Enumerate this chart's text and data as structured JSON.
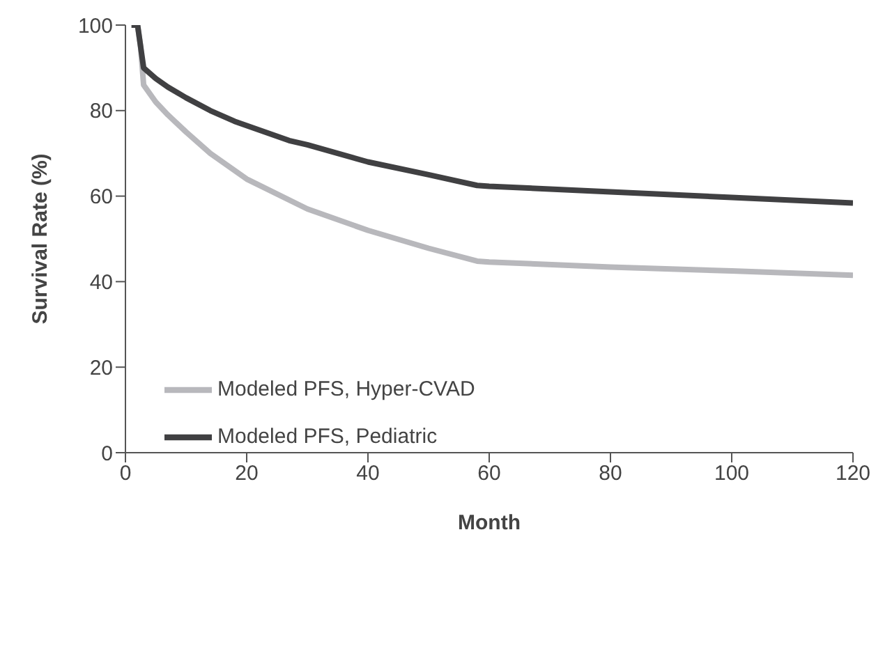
{
  "chart_data": {
    "type": "line",
    "xlabel": "Month",
    "ylabel": "Survival Rate (%)",
    "xlim": [
      0,
      120
    ],
    "xticks": [
      0,
      20,
      40,
      60,
      80,
      100,
      120
    ],
    "ylim": [
      0,
      100
    ],
    "yticks": [
      0,
      20,
      40,
      60,
      80,
      100
    ],
    "grid": false,
    "legend": "bottom left",
    "marker": "none",
    "line_style": "solid",
    "series": [
      {
        "name": "Modeled PFS, Hyper-CVAD",
        "color": "#b8b8bc",
        "x": [
          1,
          2,
          2.5,
          3,
          5,
          7,
          10,
          14,
          20,
          30,
          40,
          50,
          58,
          60,
          80,
          100,
          120
        ],
        "values": [
          100,
          100,
          95,
          86,
          82,
          79,
          75,
          70,
          64,
          57,
          52,
          47.8,
          44.8,
          44.6,
          43.4,
          42.5,
          41.5
        ]
      },
      {
        "name": "Modeled PFS, Pediatric",
        "color": "#404042",
        "x": [
          1,
          2,
          3,
          5,
          7,
          10,
          14,
          18,
          27,
          30,
          40,
          50,
          58,
          60,
          80,
          100,
          120
        ],
        "values": [
          100,
          100,
          90,
          87.5,
          85.5,
          83,
          80,
          77.5,
          73,
          72,
          68,
          65,
          62.5,
          62.3,
          61,
          59.7,
          58.4
        ]
      }
    ]
  }
}
